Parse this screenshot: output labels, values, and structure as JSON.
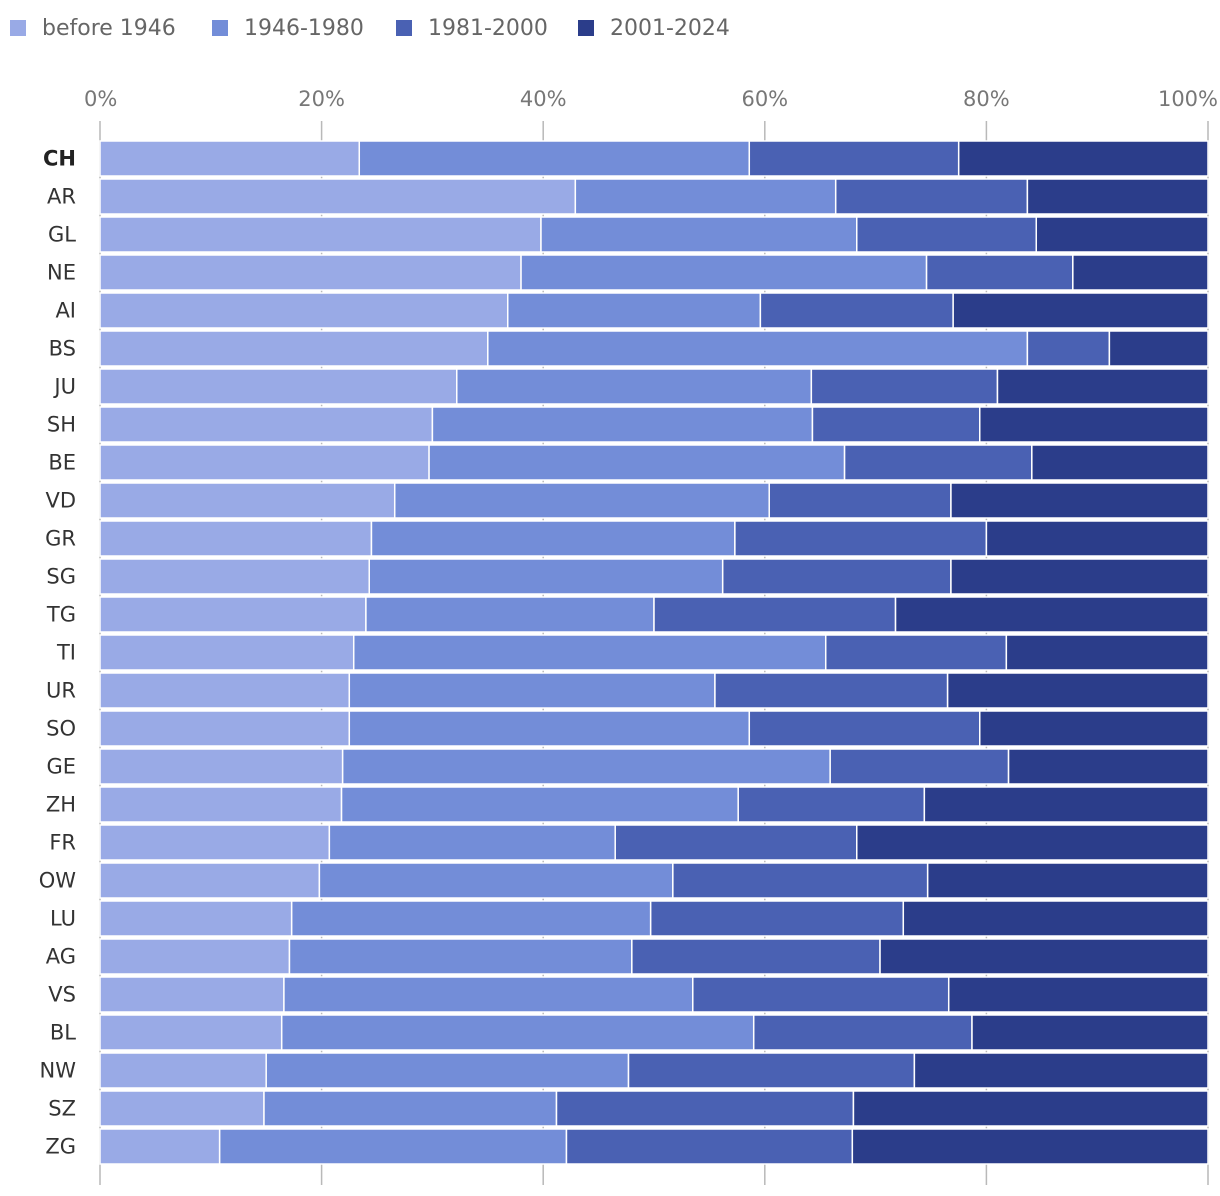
{
  "chart_data": {
    "type": "bar",
    "orientation": "horizontal",
    "stacked": true,
    "normalized": true,
    "legend": {
      "placement": "top-left",
      "entries": [
        "before 1946",
        "1946-1980",
        "1981-2000",
        "2001-2024"
      ]
    },
    "x_ticks": [
      "0%",
      "20%",
      "40%",
      "60%",
      "80%",
      "100%"
    ],
    "xlim": [
      0,
      100
    ],
    "grid": true,
    "highlighted_category": "CH",
    "categories": [
      "CH",
      "AR",
      "GL",
      "NE",
      "AI",
      "BS",
      "JU",
      "SH",
      "BE",
      "VD",
      "GR",
      "SG",
      "TG",
      "TI",
      "UR",
      "SO",
      "GE",
      "ZH",
      "FR",
      "OW",
      "LU",
      "AG",
      "VS",
      "BL",
      "NW",
      "SZ",
      "ZG"
    ],
    "series": [
      {
        "name": "before 1946",
        "color": "#99aae6",
        "values": [
          23.4,
          42.9,
          39.8,
          38.0,
          36.8,
          35.0,
          32.2,
          30.0,
          29.7,
          26.6,
          24.5,
          24.3,
          24.0,
          22.9,
          22.5,
          22.5,
          21.9,
          21.8,
          20.7,
          19.8,
          17.3,
          17.1,
          16.6,
          16.4,
          15.0,
          14.8,
          10.8
        ]
      },
      {
        "name": "1946-1980",
        "color": "#738dd8",
        "values": [
          35.2,
          23.5,
          28.5,
          36.6,
          22.8,
          48.7,
          32.0,
          34.3,
          37.5,
          33.8,
          32.8,
          31.9,
          26.0,
          42.6,
          33.0,
          36.1,
          44.0,
          35.8,
          25.8,
          31.9,
          32.4,
          30.9,
          36.9,
          42.6,
          32.7,
          26.4,
          31.3
        ]
      },
      {
        "name": "1981-2000",
        "color": "#4a61b3",
        "values": [
          18.9,
          17.3,
          16.2,
          13.2,
          17.4,
          7.4,
          16.8,
          15.1,
          16.9,
          16.4,
          22.7,
          20.6,
          21.8,
          16.3,
          21.0,
          20.8,
          16.1,
          16.8,
          21.8,
          23.0,
          22.8,
          22.4,
          23.1,
          19.7,
          25.8,
          26.8,
          25.8
        ]
      },
      {
        "name": "2001-2024",
        "color": "#2b3d8a",
        "values": [
          22.5,
          16.3,
          15.5,
          12.2,
          23.0,
          8.9,
          19.0,
          20.6,
          15.9,
          23.2,
          20.0,
          23.2,
          28.2,
          18.2,
          23.5,
          20.6,
          18.0,
          25.6,
          31.7,
          25.3,
          27.5,
          29.6,
          23.4,
          21.3,
          26.5,
          32.0,
          32.1
        ]
      }
    ]
  }
}
